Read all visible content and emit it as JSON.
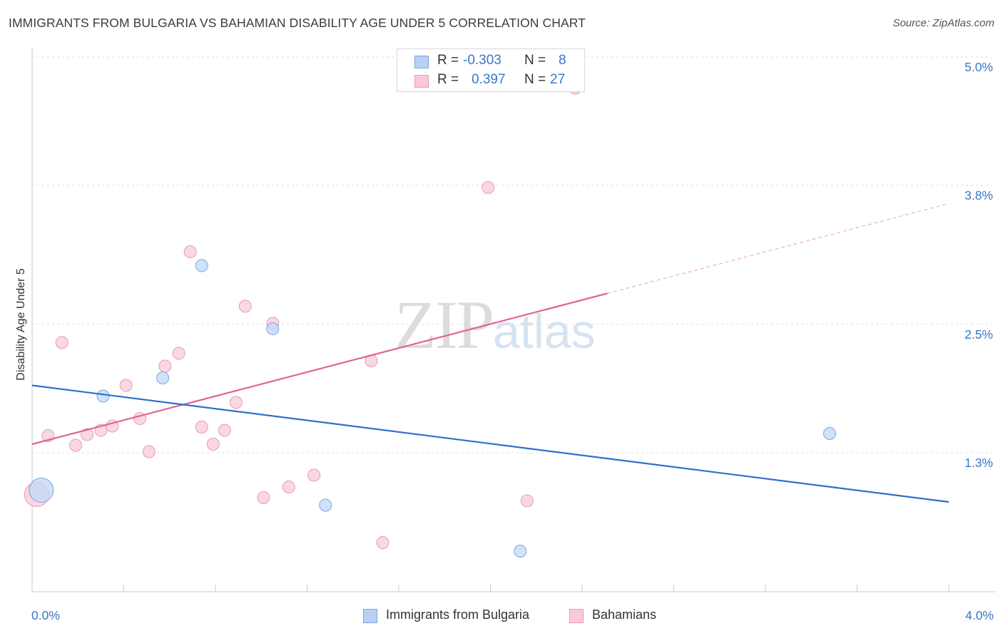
{
  "header": {
    "title": "IMMIGRANTS FROM BULGARIA VS BAHAMIAN DISABILITY AGE UNDER 5 CORRELATION CHART",
    "source": "Source: ZipAtlas.com"
  },
  "watermark": {
    "zip": "ZIP",
    "atlas": "atlas"
  },
  "stats": [
    {
      "r_label": "R =",
      "r_value": "-0.303",
      "n_label": "N =",
      "n_value": "8",
      "color": "#b8d1f3",
      "border": "#7aa6e0"
    },
    {
      "r_label": "R =",
      "r_value": "0.397",
      "n_label": "N =",
      "n_value": "27",
      "color": "#f9c9d8",
      "border": "#ea9bb4"
    }
  ],
  "legend": [
    {
      "label": "Immigrants from Bulgaria",
      "color": "#b8d1f3",
      "border": "#7aa6e0"
    },
    {
      "label": "Bahamians",
      "color": "#f9c9d8",
      "border": "#ea9bb4"
    }
  ],
  "chart_data": {
    "type": "scatter",
    "title": "IMMIGRANTS FROM BULGARIA VS BAHAMIAN DISABILITY AGE UNDER 5 CORRELATION CHART",
    "xlabel": "",
    "ylabel": "Disability Age Under 5",
    "xlim": [
      0,
      4.0
    ],
    "ylim": [
      0,
      5.0
    ],
    "x_tick_labels": [
      "0.0%",
      "4.0%"
    ],
    "y_ticks": [
      1.3,
      2.5,
      3.8,
      5.0
    ],
    "y_tick_labels": [
      "1.3%",
      "2.5%",
      "3.8%",
      "5.0%"
    ],
    "grid": true,
    "legend_position": "bottom",
    "series": [
      {
        "name": "Immigrants from Bulgaria",
        "color": "#7aa6e0",
        "fill": "#c5daf5",
        "points": [
          {
            "x": 0.04,
            "y": 0.95,
            "size": "large"
          },
          {
            "x": 0.31,
            "y": 1.83
          },
          {
            "x": 0.57,
            "y": 2.0
          },
          {
            "x": 0.74,
            "y": 3.05
          },
          {
            "x": 1.05,
            "y": 2.46
          },
          {
            "x": 1.28,
            "y": 0.81
          },
          {
            "x": 2.13,
            "y": 0.38
          },
          {
            "x": 3.48,
            "y": 1.48
          }
        ],
        "trend": {
          "x": [
            0.0,
            4.0
          ],
          "y": [
            1.93,
            0.84
          ],
          "color": "#2f6fcc"
        }
      },
      {
        "name": "Bahamians",
        "color": "#ea9bb4",
        "fill": "#f9cedb",
        "points": [
          {
            "x": 0.02,
            "y": 0.91,
            "size": "large"
          },
          {
            "x": 0.07,
            "y": 1.46
          },
          {
            "x": 0.13,
            "y": 2.33
          },
          {
            "x": 0.19,
            "y": 1.37
          },
          {
            "x": 0.24,
            "y": 1.47
          },
          {
            "x": 0.3,
            "y": 1.51
          },
          {
            "x": 0.35,
            "y": 1.55
          },
          {
            "x": 0.41,
            "y": 1.93
          },
          {
            "x": 0.47,
            "y": 1.62
          },
          {
            "x": 0.51,
            "y": 1.31
          },
          {
            "x": 0.58,
            "y": 2.11
          },
          {
            "x": 0.64,
            "y": 2.23
          },
          {
            "x": 0.69,
            "y": 3.18
          },
          {
            "x": 0.74,
            "y": 1.54
          },
          {
            "x": 0.79,
            "y": 1.38
          },
          {
            "x": 0.84,
            "y": 1.51
          },
          {
            "x": 0.89,
            "y": 1.77
          },
          {
            "x": 0.93,
            "y": 2.67
          },
          {
            "x": 1.01,
            "y": 0.88
          },
          {
            "x": 1.05,
            "y": 2.51
          },
          {
            "x": 1.12,
            "y": 0.98
          },
          {
            "x": 1.23,
            "y": 1.09
          },
          {
            "x": 1.48,
            "y": 2.16
          },
          {
            "x": 1.53,
            "y": 0.46
          },
          {
            "x": 1.99,
            "y": 3.78
          },
          {
            "x": 2.16,
            "y": 0.85
          },
          {
            "x": 2.37,
            "y": 4.71
          }
        ],
        "trend": {
          "x": [
            0.0,
            2.51
          ],
          "y": [
            1.38,
            2.79
          ],
          "color": "#e0668f"
        },
        "trend_extension": {
          "x": [
            2.51,
            4.0
          ],
          "y": [
            2.79,
            3.63
          ],
          "style": "dashed"
        }
      }
    ]
  }
}
